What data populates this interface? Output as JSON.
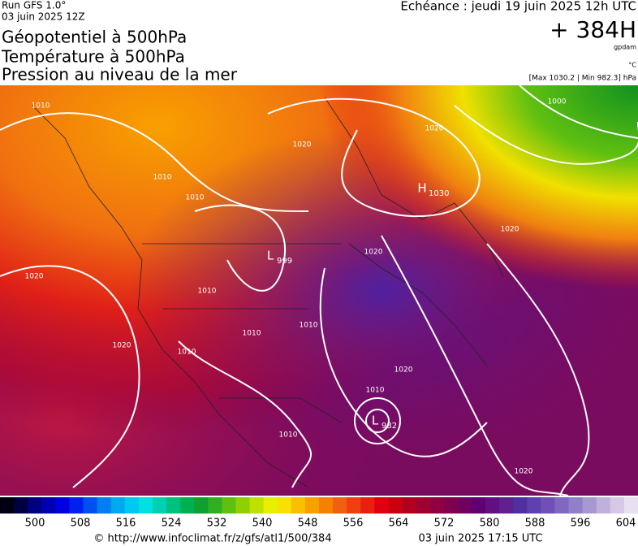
{
  "header": {
    "run": "Run GFS 1.0°",
    "run_date": "03 juin 2025 12Z",
    "titles": [
      "Géopotentiel à 500hPa",
      "Température à 500hPa",
      "Pression au niveau de la mer"
    ],
    "valid_time": "Echéance : jeudi 19 juin 2025 12h UTC",
    "lead": "+ 384H",
    "unit_geopotential": "gpdam",
    "unit_temperature": "°C",
    "pressure_range": "[Max 1030.2 | Min 982.3] hPa"
  },
  "map": {
    "isobar_labels": [
      1010,
      1020,
      1000,
      1010,
      1010,
      1020,
      1020,
      1020,
      1010,
      1010,
      1020,
      1010,
      1010,
      1020,
      1010,
      1010,
      1020,
      1020
    ],
    "centers": [
      {
        "symbol": "H",
        "value": 1030
      },
      {
        "symbol": "L",
        "value": 999
      },
      {
        "symbol": "L",
        "value": 982
      }
    ]
  },
  "colorbar": {
    "ticks": [
      500,
      508,
      516,
      524,
      532,
      540,
      548,
      556,
      564,
      572,
      580,
      588,
      596,
      604
    ]
  },
  "footer": {
    "url": "© http://www.infoclimat.fr/z/gfs/atl1/500/384",
    "timestamp": "03 juin 2025 17:15 UTC"
  }
}
